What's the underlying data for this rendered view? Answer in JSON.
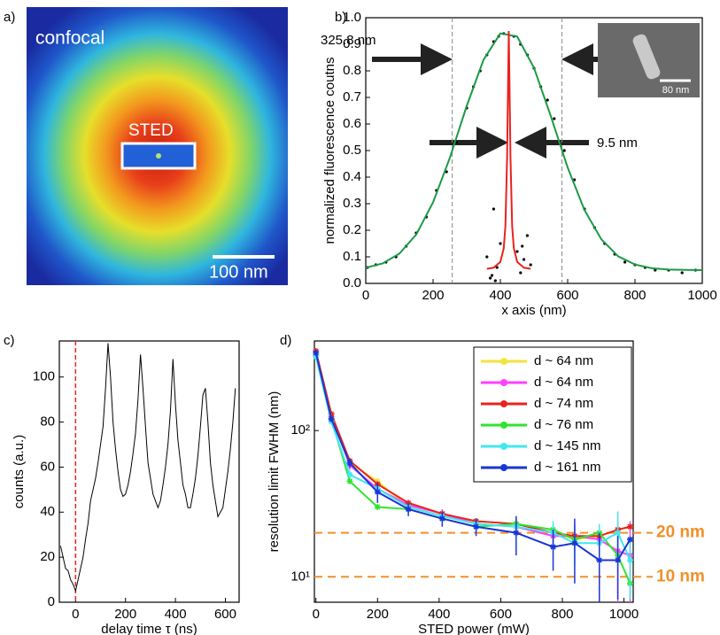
{
  "chart_data": [
    {
      "type": "image",
      "panel_label": "a)",
      "texts": [
        "confocal",
        "STED",
        "100 nm"
      ]
    },
    {
      "type": "line",
      "panel_label": "b)",
      "xlabel": "x axis (nm)",
      "ylabel": "normalized fluorescence coutns",
      "xlim": [
        0,
        1000
      ],
      "ylim": [
        0,
        1
      ],
      "xticks": [
        0,
        200,
        400,
        600,
        800,
        1000
      ],
      "yticks": [
        {
          "value": 0,
          "label": "0.0"
        },
        0.1,
        0.2,
        0.3,
        0.4,
        0.5,
        0.6,
        0.7,
        0.8,
        0.9,
        {
          "value": 1,
          "label": "1.0"
        }
      ],
      "annotations": [
        "325.8 nm",
        "9.5 nm",
        "80 nm"
      ],
      "fwhm_lines": [
        257,
        583
      ],
      "series": [
        {
          "color": "#1a9a45",
          "x": [
            0,
            50,
            100,
            150,
            200,
            250,
            300,
            350,
            400,
            450,
            500,
            550,
            600,
            650,
            700,
            750,
            800,
            850,
            900,
            950,
            1000
          ],
          "values": [
            0.059,
            0.075,
            0.112,
            0.184,
            0.305,
            0.473,
            0.668,
            0.842,
            0.941,
            0.929,
            0.811,
            0.629,
            0.436,
            0.276,
            0.166,
            0.102,
            0.071,
            0.057,
            0.052,
            0.051,
            0.05
          ]
        },
        {
          "color": "#e8231f",
          "x": [
            360,
            380,
            400,
            410,
            415,
            420,
            425,
            430,
            435,
            440,
            450,
            470,
            490
          ],
          "values": [
            0.055,
            0.059,
            0.081,
            0.132,
            0.216,
            0.476,
            0.95,
            0.476,
            0.216,
            0.132,
            0.081,
            0.059,
            0.055
          ]
        }
      ],
      "dots_x": [
        5,
        30,
        60,
        90,
        120,
        150,
        180,
        210,
        240,
        270,
        300,
        320,
        340,
        360,
        380,
        395,
        410,
        440,
        460,
        480,
        500,
        520,
        540,
        560,
        590,
        620,
        650,
        680,
        710,
        740,
        770,
        800,
        830,
        860,
        900,
        940,
        980,
        360,
        370,
        380,
        390,
        400,
        450,
        460,
        470,
        480,
        490,
        375,
        465,
        385
      ],
      "dots_y": [
        0.06,
        0.07,
        0.08,
        0.1,
        0.14,
        0.19,
        0.25,
        0.35,
        0.42,
        0.53,
        0.66,
        0.74,
        0.8,
        0.86,
        0.91,
        0.93,
        0.94,
        0.93,
        0.9,
        0.86,
        0.81,
        0.74,
        0.69,
        0.62,
        0.5,
        0.39,
        0.28,
        0.21,
        0.15,
        0.11,
        0.08,
        0.07,
        0.06,
        0.05,
        0.05,
        0.04,
        0.05,
        0.1,
        0.02,
        0.28,
        0.06,
        0.15,
        0.12,
        0.04,
        0.09,
        0.18,
        0.07,
        0.03,
        0.14,
        0.01
      ]
    },
    {
      "type": "line",
      "panel_label": "c)",
      "xlabel": "delay time τ (ns)",
      "ylabel": "counts (a.u.)",
      "xlim": [
        -65,
        655
      ],
      "ylim": [
        0,
        116
      ],
      "xticks": [
        0,
        200,
        400,
        600
      ],
      "yticks": [
        0,
        20,
        40,
        60,
        80,
        100
      ],
      "vline": 0,
      "vline_color": "#e8231f",
      "x": [
        -60,
        -50,
        -40,
        -30,
        -20,
        -10,
        0,
        10,
        20,
        30,
        40,
        50,
        60,
        70,
        80,
        90,
        100,
        110,
        120,
        130,
        140,
        150,
        160,
        170,
        180,
        190,
        200,
        210,
        220,
        230,
        240,
        250,
        260,
        270,
        280,
        290,
        300,
        310,
        320,
        330,
        340,
        350,
        360,
        370,
        380,
        390,
        400,
        410,
        420,
        430,
        440,
        450,
        460,
        470,
        480,
        490,
        500,
        510,
        520,
        530,
        540,
        550,
        560,
        570,
        580,
        590,
        600,
        610,
        620,
        630,
        640
      ],
      "series": [
        {
          "color": "#000000",
          "values": [
            25,
            20,
            15,
            14,
            10,
            8,
            5,
            10,
            15,
            20,
            28,
            35,
            45,
            50,
            55,
            62,
            70,
            78,
            95,
            115,
            100,
            80,
            68,
            58,
            50,
            47,
            48,
            52,
            58,
            66,
            75,
            90,
            110,
            95,
            78,
            62,
            55,
            48,
            45,
            42,
            45,
            52,
            60,
            70,
            85,
            108,
            88,
            72,
            62,
            52,
            48,
            42,
            42,
            48,
            55,
            65,
            78,
            92,
            95,
            80,
            62,
            52,
            45,
            38,
            40,
            42,
            50,
            58,
            68,
            80,
            95
          ]
        }
      ]
    },
    {
      "type": "line",
      "panel_label": "d)",
      "xlabel": "STED power (mW)",
      "ylabel": "resolution limit FWHM (nm)",
      "log_y": true,
      "xlim": [
        -5,
        1030
      ],
      "ylim": [
        6.7,
        410
      ],
      "xticks": [
        0,
        200,
        400,
        600,
        800,
        1000
      ],
      "yticks": [
        {
          "value": 10,
          "label": "10¹"
        },
        {
          "value": 100,
          "label": "10²"
        }
      ],
      "hlines": [
        {
          "value": 20,
          "label": "20 nm"
        },
        {
          "value": 10,
          "label": "10 nm"
        }
      ],
      "hline_color": "#f0902a",
      "x": [
        0,
        50,
        110,
        200,
        300,
        410,
        520,
        650,
        770,
        840,
        920,
        980,
        1020
      ],
      "series": [
        {
          "name": "d ~ 64 nm",
          "color": "#f5e43a",
          "values": [
            330,
            125,
            60,
            45,
            30,
            26,
            24,
            23,
            20,
            18,
            19,
            21,
            22
          ]
        },
        {
          "name": "d ~ 64 nm",
          "color": "#ff3fff",
          "values": [
            330,
            125,
            58,
            40,
            31,
            27,
            23,
            22,
            19,
            19,
            18,
            15,
            14
          ],
          "errors": [
            0,
            0,
            4,
            4,
            2,
            2,
            2,
            3,
            3,
            4,
            4,
            9,
            10
          ]
        },
        {
          "name": "d ~ 74 nm",
          "color": "#e8231f",
          "values": [
            350,
            130,
            62,
            43,
            32,
            27,
            24,
            23,
            20,
            19,
            19,
            21,
            22
          ]
        },
        {
          "name": "d ~ 76 nm",
          "color": "#2ee52e",
          "values": [
            330,
            120,
            45,
            30,
            29,
            25,
            22,
            23,
            21,
            18,
            20,
            14,
            9
          ]
        },
        {
          "name": "d ~ 145 nm",
          "color": "#3fe8f0",
          "values": [
            320,
            115,
            50,
            40,
            30,
            26,
            23,
            22,
            20,
            17,
            17,
            20,
            13
          ],
          "errors": [
            0,
            0,
            3,
            4,
            2,
            2,
            2,
            3,
            4,
            5,
            6,
            8,
            6
          ]
        },
        {
          "name": "d ~ 161 nm",
          "color": "#1a35d6",
          "values": [
            340,
            120,
            60,
            38,
            29,
            25,
            22,
            20,
            16,
            17,
            13,
            13,
            18
          ],
          "errors": [
            0,
            0,
            4,
            6,
            3,
            3,
            3,
            6,
            5,
            8,
            7,
            6,
            0
          ]
        }
      ]
    }
  ]
}
